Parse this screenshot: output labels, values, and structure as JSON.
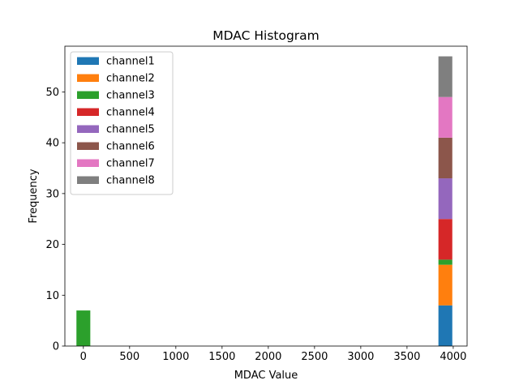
{
  "chart_data": {
    "type": "bar",
    "stacked": true,
    "title": "MDAC Histogram",
    "xlabel": "MDAC Value",
    "ylabel": "Frequency",
    "xlim": [
      -200,
      4150
    ],
    "ylim": [
      0,
      59
    ],
    "xticks": [
      0,
      500,
      1000,
      1500,
      2000,
      2500,
      3000,
      3500,
      4000
    ],
    "yticks": [
      0,
      10,
      20,
      30,
      40,
      50
    ],
    "legend_position": "upper-left",
    "bins": [
      {
        "x_start": -75,
        "x_end": 75
      },
      {
        "x_start": 3840,
        "x_end": 3990
      }
    ],
    "series": [
      {
        "name": "channel1",
        "color": "#1f77b4",
        "counts": [
          0,
          8
        ]
      },
      {
        "name": "channel2",
        "color": "#ff7f0e",
        "counts": [
          0,
          8
        ]
      },
      {
        "name": "channel3",
        "color": "#2ca02c",
        "counts": [
          7,
          1
        ]
      },
      {
        "name": "channel4",
        "color": "#d62728",
        "counts": [
          0,
          8
        ]
      },
      {
        "name": "channel5",
        "color": "#9467bd",
        "counts": [
          0,
          8
        ]
      },
      {
        "name": "channel6",
        "color": "#8c564b",
        "counts": [
          0,
          8
        ]
      },
      {
        "name": "channel7",
        "color": "#e377c2",
        "counts": [
          0,
          8
        ]
      },
      {
        "name": "channel8",
        "color": "#7f7f7f",
        "counts": [
          0,
          8
        ]
      }
    ]
  }
}
